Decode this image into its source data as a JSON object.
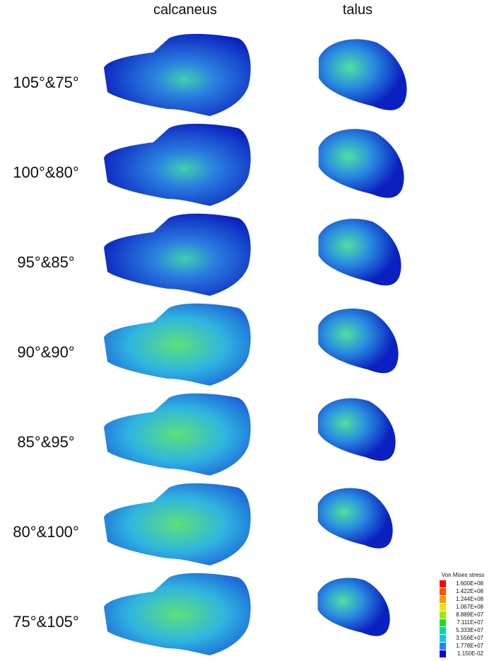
{
  "header": {
    "columns": [
      "calcaneus",
      "talus"
    ]
  },
  "rows": [
    "105°&75°",
    "100°&80°",
    "95°&85°",
    "90°&90°",
    "85°&95°",
    "80°&100°",
    "75°&105°"
  ],
  "legend": {
    "title": "Von Mises stress",
    "labels": [
      "1.600E+08",
      "1.422E+08",
      "1.244E+08",
      "1.067E+08",
      "8.889E+07",
      "7.111E+07",
      "5.333E+07",
      "3.556E+07",
      "1.778E+07",
      "1.150E-02"
    ],
    "colors": [
      "#ff0000",
      "#ff5000",
      "#ff9900",
      "#e8e800",
      "#99ee00",
      "#22dd22",
      "#00dd99",
      "#00ccee",
      "#1a88ff",
      "#0000dd"
    ]
  }
}
